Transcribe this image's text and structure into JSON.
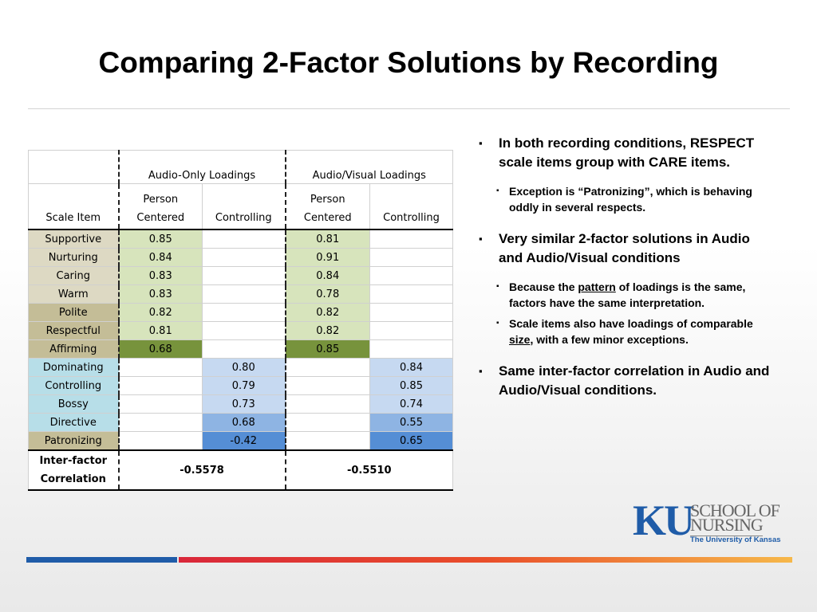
{
  "title": "Comparing 2-Factor Solutions by Recording",
  "table": {
    "group_headers": [
      "Audio-Only Loadings",
      "Audio/Visual Loadings"
    ],
    "column_headers": [
      "Scale Item",
      "Person Centered",
      "Controlling",
      "Person Centered",
      "Controlling"
    ],
    "rows": [
      [
        "Supportive",
        "0.85",
        null,
        "0.81",
        null
      ],
      [
        "Nurturing",
        "0.84",
        null,
        "0.91",
        null
      ],
      [
        "Caring",
        "0.83",
        null,
        "0.84",
        null
      ],
      [
        "Warm",
        "0.83",
        null,
        "0.78",
        null
      ],
      [
        "Polite",
        "0.82",
        null,
        "0.82",
        null
      ],
      [
        "Respectful",
        "0.81",
        null,
        "0.82",
        null
      ],
      [
        "Affirming",
        "0.68",
        null,
        "0.85",
        null
      ],
      [
        "Dominating",
        null,
        "0.80",
        null,
        "0.84"
      ],
      [
        "Controlling",
        null,
        "0.79",
        null,
        "0.85"
      ],
      [
        "Bossy",
        null,
        "0.73",
        null,
        "0.74"
      ],
      [
        "Directive",
        null,
        "0.68",
        null,
        "0.55"
      ],
      [
        "Patronizing",
        null,
        "-0.42",
        null,
        "0.65"
      ]
    ],
    "footer": {
      "label": "Inter-factor Correlation",
      "values": [
        "-0.5578",
        "-0.5510"
      ]
    }
  },
  "bullets": [
    {
      "text": "In both recording conditions, RESPECT scale items group with CARE items.",
      "sub": [
        {
          "text": "Exception is “Patronizing”, which is behaving oddly in several respects."
        }
      ]
    },
    {
      "text": "Very similar 2-factor solutions in Audio and Audio/Visual conditions",
      "sub": [
        {
          "before": "Because the ",
          "underlined": "pattern",
          "after": " of loadings is the same, factors have the same interpretation."
        },
        {
          "before": "Scale items also have loadings of comparable ",
          "underlined": "size",
          "after": ", with a few minor exceptions."
        }
      ]
    },
    {
      "text": "Same inter-factor correlation in Audio and Audio/Visual conditions.",
      "sub": []
    }
  ],
  "logo": {
    "mark": "KU",
    "line1": "SCHOOL OF",
    "line2": "NURSING",
    "university": "The University of Kansas"
  }
}
